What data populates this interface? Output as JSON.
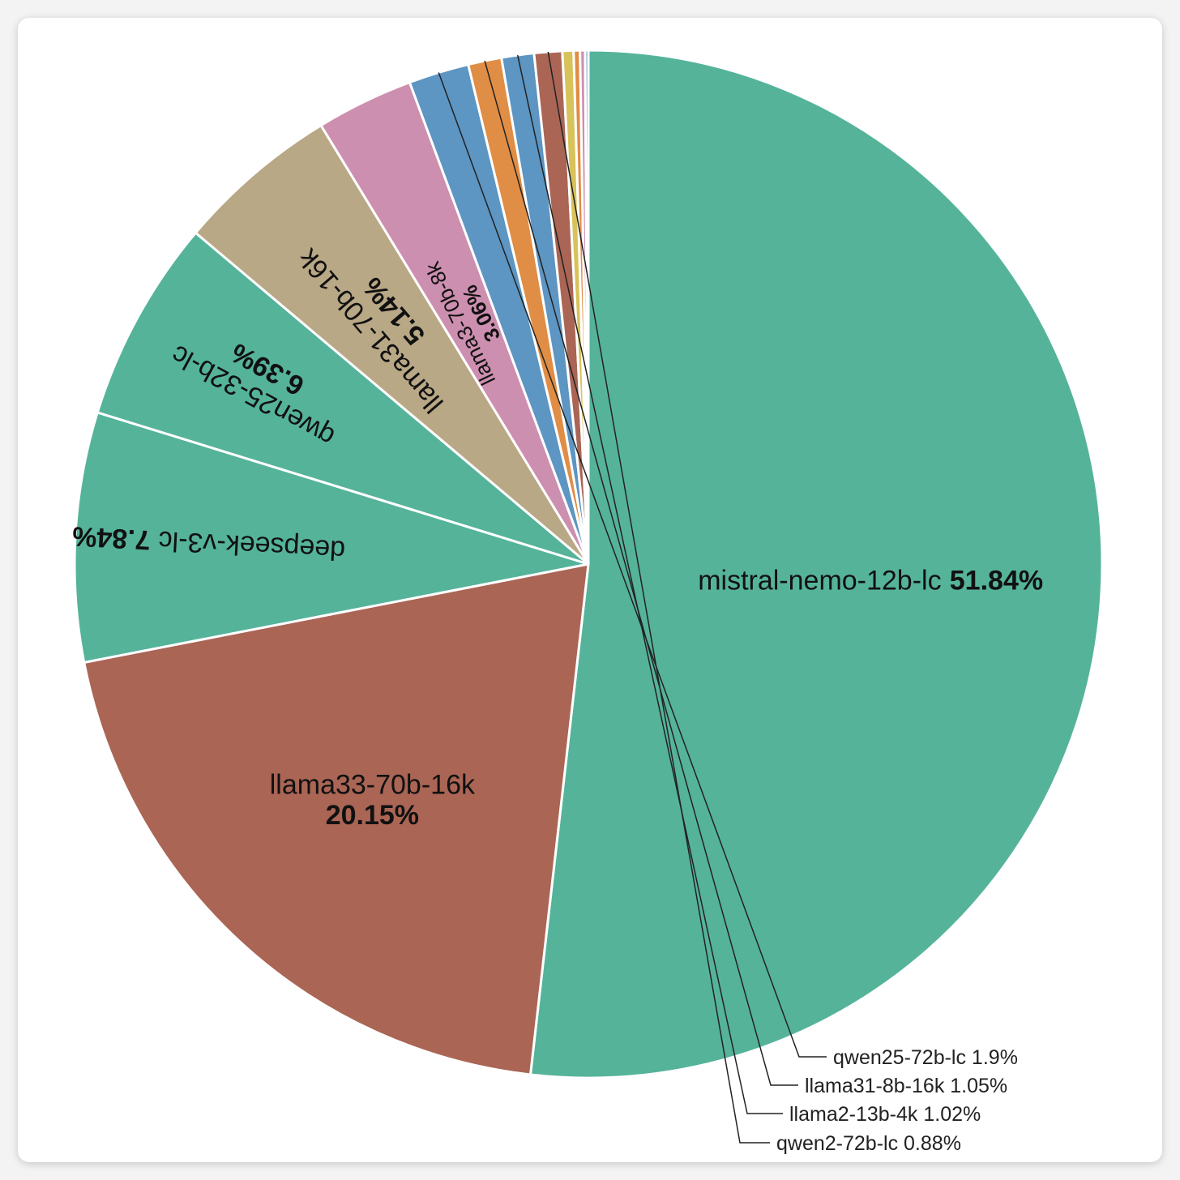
{
  "chart_data": {
    "type": "pie",
    "series": [
      {
        "name": "mistral-nemo-12b-lc",
        "value": 51.84,
        "label": "51.84%",
        "color": "#55b39a"
      },
      {
        "name": "llama33-70b-16k",
        "value": 20.15,
        "label": "20.15%",
        "color": "#aa6555"
      },
      {
        "name": "deepseek-v3-lc",
        "value": 7.84,
        "label": "7.84%",
        "color": "#55b39a"
      },
      {
        "name": "qwen25-32b-lc",
        "value": 6.39,
        "label": "6.39%",
        "color": "#55b39a"
      },
      {
        "name": "llama31-70b-16k",
        "value": 5.14,
        "label": "5.14%",
        "color": "#b9a886"
      },
      {
        "name": "llama3-70b-8k",
        "value": 3.06,
        "label": "3.06%",
        "color": "#cd8fb0"
      },
      {
        "name": "qwen25-72b-lc",
        "value": 1.9,
        "label": "1.9%",
        "color": "#5d95c3"
      },
      {
        "name": "llama31-8b-16k",
        "value": 1.05,
        "label": "1.05%",
        "color": "#e08d45"
      },
      {
        "name": "llama2-13b-4k",
        "value": 1.02,
        "label": "1.02%",
        "color": "#5d95c3"
      },
      {
        "name": "qwen2-72b-lc",
        "value": 0.88,
        "label": "0.88%",
        "color": "#aa6555"
      },
      {
        "name": "",
        "value": 0.35,
        "label": "",
        "color": "#d8c25a"
      },
      {
        "name": "",
        "value": 0.2,
        "label": "",
        "color": "#e08d45"
      },
      {
        "name": "",
        "value": 0.16,
        "label": "",
        "color": "#cd8fb0"
      },
      {
        "name": "",
        "value": 0.1,
        "label": "",
        "color": "#5d95c3"
      }
    ],
    "legend": "none",
    "start": "12 o'clock",
    "direction": "clockwise"
  }
}
